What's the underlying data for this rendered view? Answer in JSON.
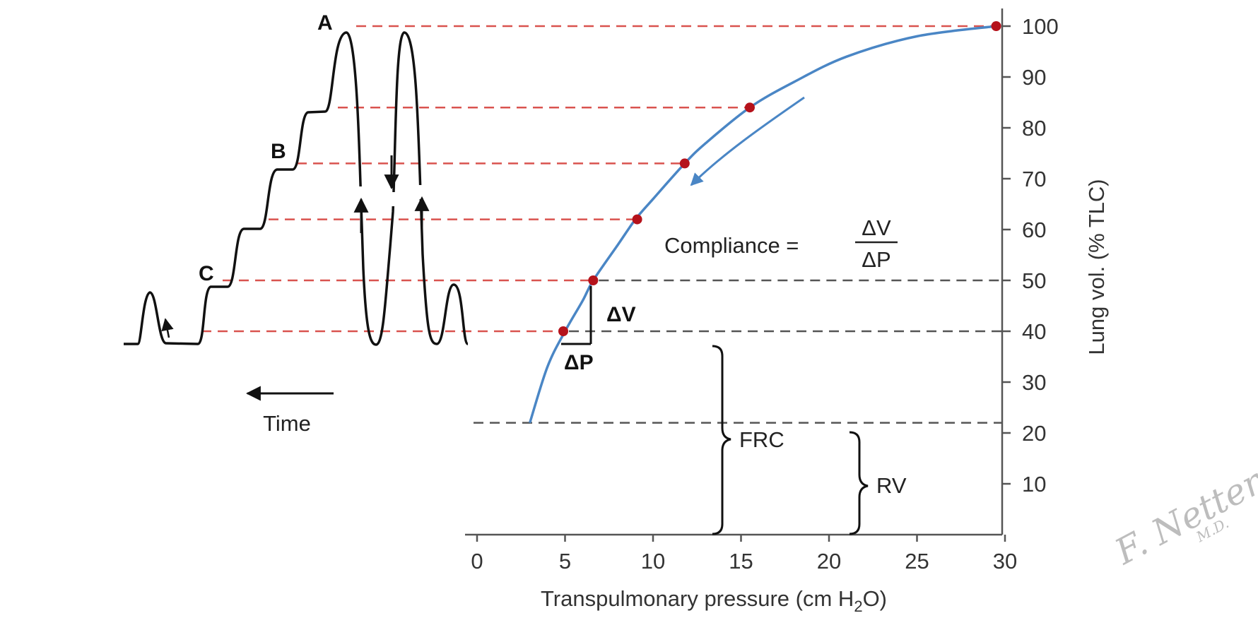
{
  "chart_data": {
    "type": "line",
    "xlabel": "Transpulmonary pressure (cm H",
    "xlabel_sub": "2",
    "xlabel_end": "O)",
    "ylabel": "Lung vol. (% TLC)",
    "xlim": [
      0,
      30
    ],
    "ylim": [
      0,
      100
    ],
    "x_ticks": [
      "0",
      "5",
      "10",
      "15",
      "20",
      "25",
      "30"
    ],
    "y_ticks": [
      "10",
      "20",
      "30",
      "40",
      "50",
      "60",
      "70",
      "80",
      "90",
      "100"
    ],
    "grid": false,
    "series": [
      {
        "x": [
          3,
          4,
          5,
          6,
          6.6,
          8,
          9,
          10,
          11.8,
          13,
          15.5,
          18,
          21,
          25,
          29.5
        ],
        "y": [
          22,
          33,
          40,
          46,
          50,
          57,
          62,
          66,
          73,
          77,
          84,
          89,
          94,
          98,
          100
        ],
        "color": "#4a86c5"
      }
    ],
    "points": [
      {
        "x": 4.9,
        "y": 40
      },
      {
        "x": 6.6,
        "y": 50
      },
      {
        "x": 9.1,
        "y": 62
      },
      {
        "x": 11.8,
        "y": 73
      },
      {
        "x": 15.5,
        "y": 84
      },
      {
        "x": 29.5,
        "y": 100
      }
    ],
    "reference_lines": [
      {
        "y": 100,
        "style": "red-dashed"
      },
      {
        "y": 84,
        "style": "red-dashed"
      },
      {
        "y": 73,
        "style": "red-dashed"
      },
      {
        "y": 62,
        "style": "red-dashed"
      },
      {
        "y": 50,
        "style": "red-dashed"
      },
      {
        "y": 40,
        "style": "red-dashed"
      },
      {
        "y": 22,
        "style": "gray-dashed"
      }
    ],
    "annotations": {
      "compliance_label": "Compliance =",
      "compliance_num": "ΔV",
      "compliance_den": "ΔP",
      "delta_v": "ΔV",
      "delta_p": "ΔP",
      "frc": "FRC",
      "rv": "RV",
      "time": "Time",
      "label_a": "A",
      "label_b": "B",
      "label_c": "C"
    },
    "colors": {
      "curve": "#4a86c5",
      "point": "#b5121b",
      "red_dash": "#d9534f",
      "gray_dash": "#555555",
      "axis": "#555555",
      "trace": "#111111"
    }
  },
  "signature": {
    "line1": "F. Netter",
    "line2": "M.D."
  }
}
